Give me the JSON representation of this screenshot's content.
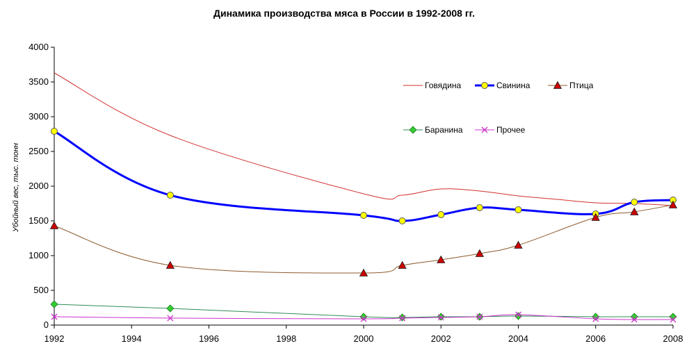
{
  "chart_data": {
    "type": "line",
    "title": "Динамика производства мяса в России в 1992-2008 гг.",
    "xlabel": "",
    "ylabel": "Убойный вес, тыс. тонн",
    "xlim": [
      1992,
      2008
    ],
    "ylim": [
      0,
      4000
    ],
    "x_ticks": [
      "1992",
      "1994",
      "1996",
      "1998",
      "2000",
      "2002",
      "2004",
      "2006",
      "2008"
    ],
    "y_ticks": [
      "0",
      "500",
      "1000",
      "1500",
      "2000",
      "2500",
      "3000",
      "3500",
      "4000"
    ],
    "grid": false,
    "legend_position": "top-right",
    "series": [
      {
        "name": "Говядина",
        "color": "#d32f2f",
        "marker": "none",
        "x": [
          1992,
          1995,
          2000,
          2001,
          2002,
          2003,
          2004,
          2005,
          2006,
          2007,
          2008
        ],
        "values": [
          3630,
          2730,
          1890,
          1870,
          1960,
          1930,
          1860,
          1810,
          1760,
          1750,
          1720
        ]
      },
      {
        "name": "Свинина",
        "color": "#0000ff",
        "marker": "circle",
        "x": [
          1992,
          1995,
          2000,
          2001,
          2002,
          2003,
          2004,
          2006,
          2007,
          2008
        ],
        "values": [
          2790,
          1870,
          1580,
          1500,
          1590,
          1690,
          1660,
          1600,
          1770,
          1800
        ]
      },
      {
        "name": "Птица",
        "color": "#8b5a2b",
        "marker": "triangle",
        "x": [
          1992,
          1995,
          2000,
          2001,
          2002,
          2003,
          2004,
          2006,
          2007,
          2008
        ],
        "values": [
          1430,
          860,
          750,
          860,
          940,
          1030,
          1150,
          1550,
          1630,
          1730
        ]
      },
      {
        "name": "Баранина",
        "color": "#2e8b57",
        "marker": "diamond",
        "x": [
          1992,
          1995,
          2000,
          2001,
          2002,
          2003,
          2004,
          2006,
          2007,
          2008
        ],
        "values": [
          300,
          240,
          120,
          110,
          120,
          120,
          130,
          120,
          120,
          120
        ]
      },
      {
        "name": "Прочее",
        "color": "#cc33cc",
        "marker": "x",
        "x": [
          1992,
          1995,
          2000,
          2001,
          2002,
          2003,
          2004,
          2006,
          2007,
          2008
        ],
        "values": [
          120,
          100,
          90,
          100,
          110,
          120,
          150,
          90,
          80,
          80
        ]
      }
    ],
    "marker_colors": {
      "circle_fill": "#ffff00",
      "triangle_fill": "#cc0000",
      "diamond_fill": "#33cc33"
    }
  }
}
